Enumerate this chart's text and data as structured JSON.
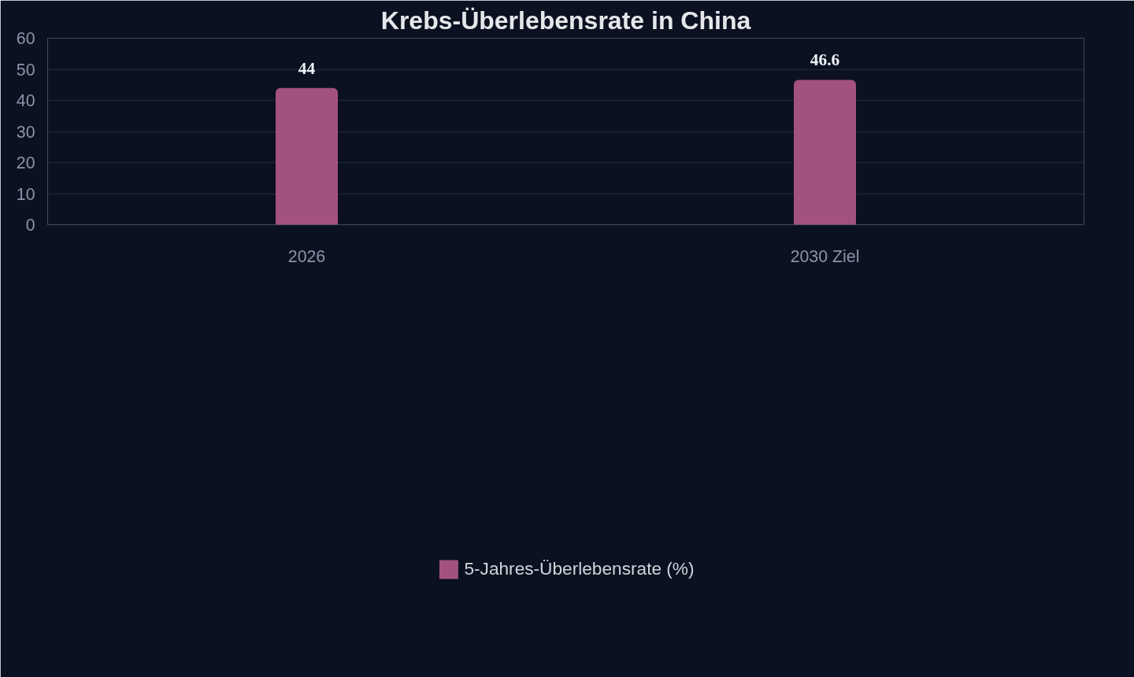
{
  "chart_data": {
    "type": "bar",
    "title": "Krebs-Überlebensrate in China",
    "categories": [
      "2026",
      "2030 Ziel"
    ],
    "series": [
      {
        "name": "5-Jahres-Überlebensrate (%)",
        "color": "#a3527e",
        "values": [
          44,
          46.6
        ]
      }
    ],
    "ylim": [
      0,
      60
    ],
    "yticks": [
      0,
      10,
      20,
      30,
      40,
      50,
      60
    ],
    "grid": "y",
    "legend": "bottom",
    "data_labels": true
  }
}
